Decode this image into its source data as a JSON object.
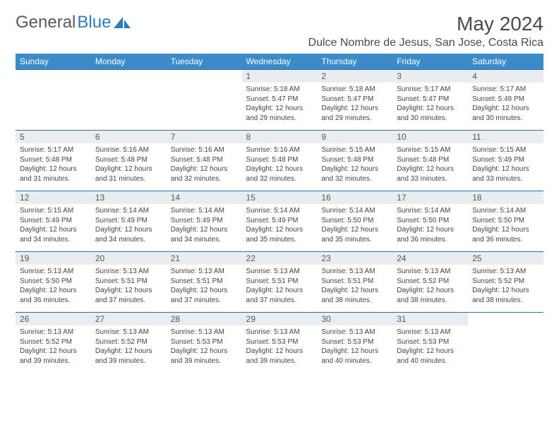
{
  "brand": {
    "part1": "General",
    "part2": "Blue"
  },
  "title": "May 2024",
  "location": "Dulce Nombre de Jesus, San Jose, Costa Rica",
  "colors": {
    "header_bg": "#3b8bc8",
    "header_text": "#ffffff",
    "cell_border": "#2f6fa3",
    "daynum_bg": "#e9edf0",
    "text": "#444444",
    "brand_gray": "#5a5a5a",
    "brand_blue": "#2f7bbf",
    "page_bg": "#ffffff"
  },
  "typography": {
    "title_fontsize": 28,
    "location_fontsize": 16,
    "header_fontsize": 12,
    "daynum_fontsize": 12,
    "body_fontsize": 10
  },
  "calendar": {
    "type": "table",
    "columns": [
      "Sunday",
      "Monday",
      "Tuesday",
      "Wednesday",
      "Thursday",
      "Friday",
      "Saturday"
    ],
    "weeks": [
      [
        null,
        null,
        null,
        {
          "n": "1",
          "sr": "5:18 AM",
          "ss": "5:47 PM",
          "dl": "12 hours and 29 minutes."
        },
        {
          "n": "2",
          "sr": "5:18 AM",
          "ss": "5:47 PM",
          "dl": "12 hours and 29 minutes."
        },
        {
          "n": "3",
          "sr": "5:17 AM",
          "ss": "5:47 PM",
          "dl": "12 hours and 30 minutes."
        },
        {
          "n": "4",
          "sr": "5:17 AM",
          "ss": "5:48 PM",
          "dl": "12 hours and 30 minutes."
        }
      ],
      [
        {
          "n": "5",
          "sr": "5:17 AM",
          "ss": "5:48 PM",
          "dl": "12 hours and 31 minutes."
        },
        {
          "n": "6",
          "sr": "5:16 AM",
          "ss": "5:48 PM",
          "dl": "12 hours and 31 minutes."
        },
        {
          "n": "7",
          "sr": "5:16 AM",
          "ss": "5:48 PM",
          "dl": "12 hours and 32 minutes."
        },
        {
          "n": "8",
          "sr": "5:16 AM",
          "ss": "5:48 PM",
          "dl": "12 hours and 32 minutes."
        },
        {
          "n": "9",
          "sr": "5:15 AM",
          "ss": "5:48 PM",
          "dl": "12 hours and 32 minutes."
        },
        {
          "n": "10",
          "sr": "5:15 AM",
          "ss": "5:48 PM",
          "dl": "12 hours and 33 minutes."
        },
        {
          "n": "11",
          "sr": "5:15 AM",
          "ss": "5:49 PM",
          "dl": "12 hours and 33 minutes."
        }
      ],
      [
        {
          "n": "12",
          "sr": "5:15 AM",
          "ss": "5:49 PM",
          "dl": "12 hours and 34 minutes."
        },
        {
          "n": "13",
          "sr": "5:14 AM",
          "ss": "5:49 PM",
          "dl": "12 hours and 34 minutes."
        },
        {
          "n": "14",
          "sr": "5:14 AM",
          "ss": "5:49 PM",
          "dl": "12 hours and 34 minutes."
        },
        {
          "n": "15",
          "sr": "5:14 AM",
          "ss": "5:49 PM",
          "dl": "12 hours and 35 minutes."
        },
        {
          "n": "16",
          "sr": "5:14 AM",
          "ss": "5:50 PM",
          "dl": "12 hours and 35 minutes."
        },
        {
          "n": "17",
          "sr": "5:14 AM",
          "ss": "5:50 PM",
          "dl": "12 hours and 36 minutes."
        },
        {
          "n": "18",
          "sr": "5:14 AM",
          "ss": "5:50 PM",
          "dl": "12 hours and 36 minutes."
        }
      ],
      [
        {
          "n": "19",
          "sr": "5:13 AM",
          "ss": "5:50 PM",
          "dl": "12 hours and 36 minutes."
        },
        {
          "n": "20",
          "sr": "5:13 AM",
          "ss": "5:51 PM",
          "dl": "12 hours and 37 minutes."
        },
        {
          "n": "21",
          "sr": "5:13 AM",
          "ss": "5:51 PM",
          "dl": "12 hours and 37 minutes."
        },
        {
          "n": "22",
          "sr": "5:13 AM",
          "ss": "5:51 PM",
          "dl": "12 hours and 37 minutes."
        },
        {
          "n": "23",
          "sr": "5:13 AM",
          "ss": "5:51 PM",
          "dl": "12 hours and 38 minutes."
        },
        {
          "n": "24",
          "sr": "5:13 AM",
          "ss": "5:52 PM",
          "dl": "12 hours and 38 minutes."
        },
        {
          "n": "25",
          "sr": "5:13 AM",
          "ss": "5:52 PM",
          "dl": "12 hours and 38 minutes."
        }
      ],
      [
        {
          "n": "26",
          "sr": "5:13 AM",
          "ss": "5:52 PM",
          "dl": "12 hours and 39 minutes."
        },
        {
          "n": "27",
          "sr": "5:13 AM",
          "ss": "5:52 PM",
          "dl": "12 hours and 39 minutes."
        },
        {
          "n": "28",
          "sr": "5:13 AM",
          "ss": "5:53 PM",
          "dl": "12 hours and 39 minutes."
        },
        {
          "n": "29",
          "sr": "5:13 AM",
          "ss": "5:53 PM",
          "dl": "12 hours and 39 minutes."
        },
        {
          "n": "30",
          "sr": "5:13 AM",
          "ss": "5:53 PM",
          "dl": "12 hours and 40 minutes."
        },
        {
          "n": "31",
          "sr": "5:13 AM",
          "ss": "5:53 PM",
          "dl": "12 hours and 40 minutes."
        },
        null
      ]
    ],
    "labels": {
      "sunrise": "Sunrise:",
      "sunset": "Sunset:",
      "daylight": "Daylight:"
    }
  }
}
